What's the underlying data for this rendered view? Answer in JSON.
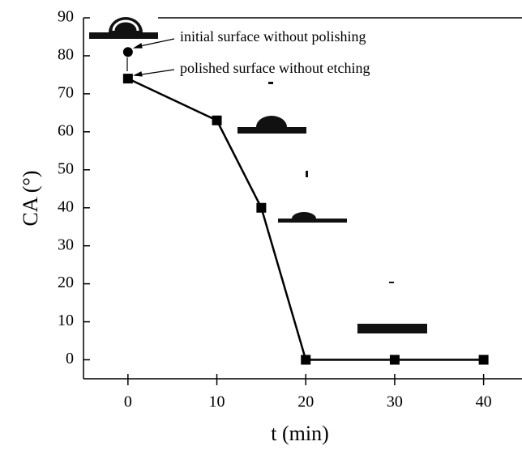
{
  "chart_data": {
    "type": "line",
    "y_label": "CA (°)",
    "x_label": "t (min)",
    "xlim": [
      -5,
      44
    ],
    "xticks": [
      0,
      10,
      20,
      30,
      40
    ],
    "ylim": [
      -5,
      90
    ],
    "yticks": [
      0,
      10,
      20,
      30,
      40,
      50,
      60,
      70,
      80,
      90
    ],
    "series": [
      {
        "color": "#000000",
        "marker": "square",
        "x": [
          0,
          10,
          15,
          20,
          30,
          40
        ],
        "values": [
          74,
          63,
          40,
          0,
          0,
          0
        ]
      },
      {
        "color": "#000000",
        "marker": "circle",
        "x": [
          0
        ],
        "values": [
          81
        ]
      }
    ],
    "annotations": [
      "initial surface without polishing",
      "polished surface without etching"
    ]
  }
}
